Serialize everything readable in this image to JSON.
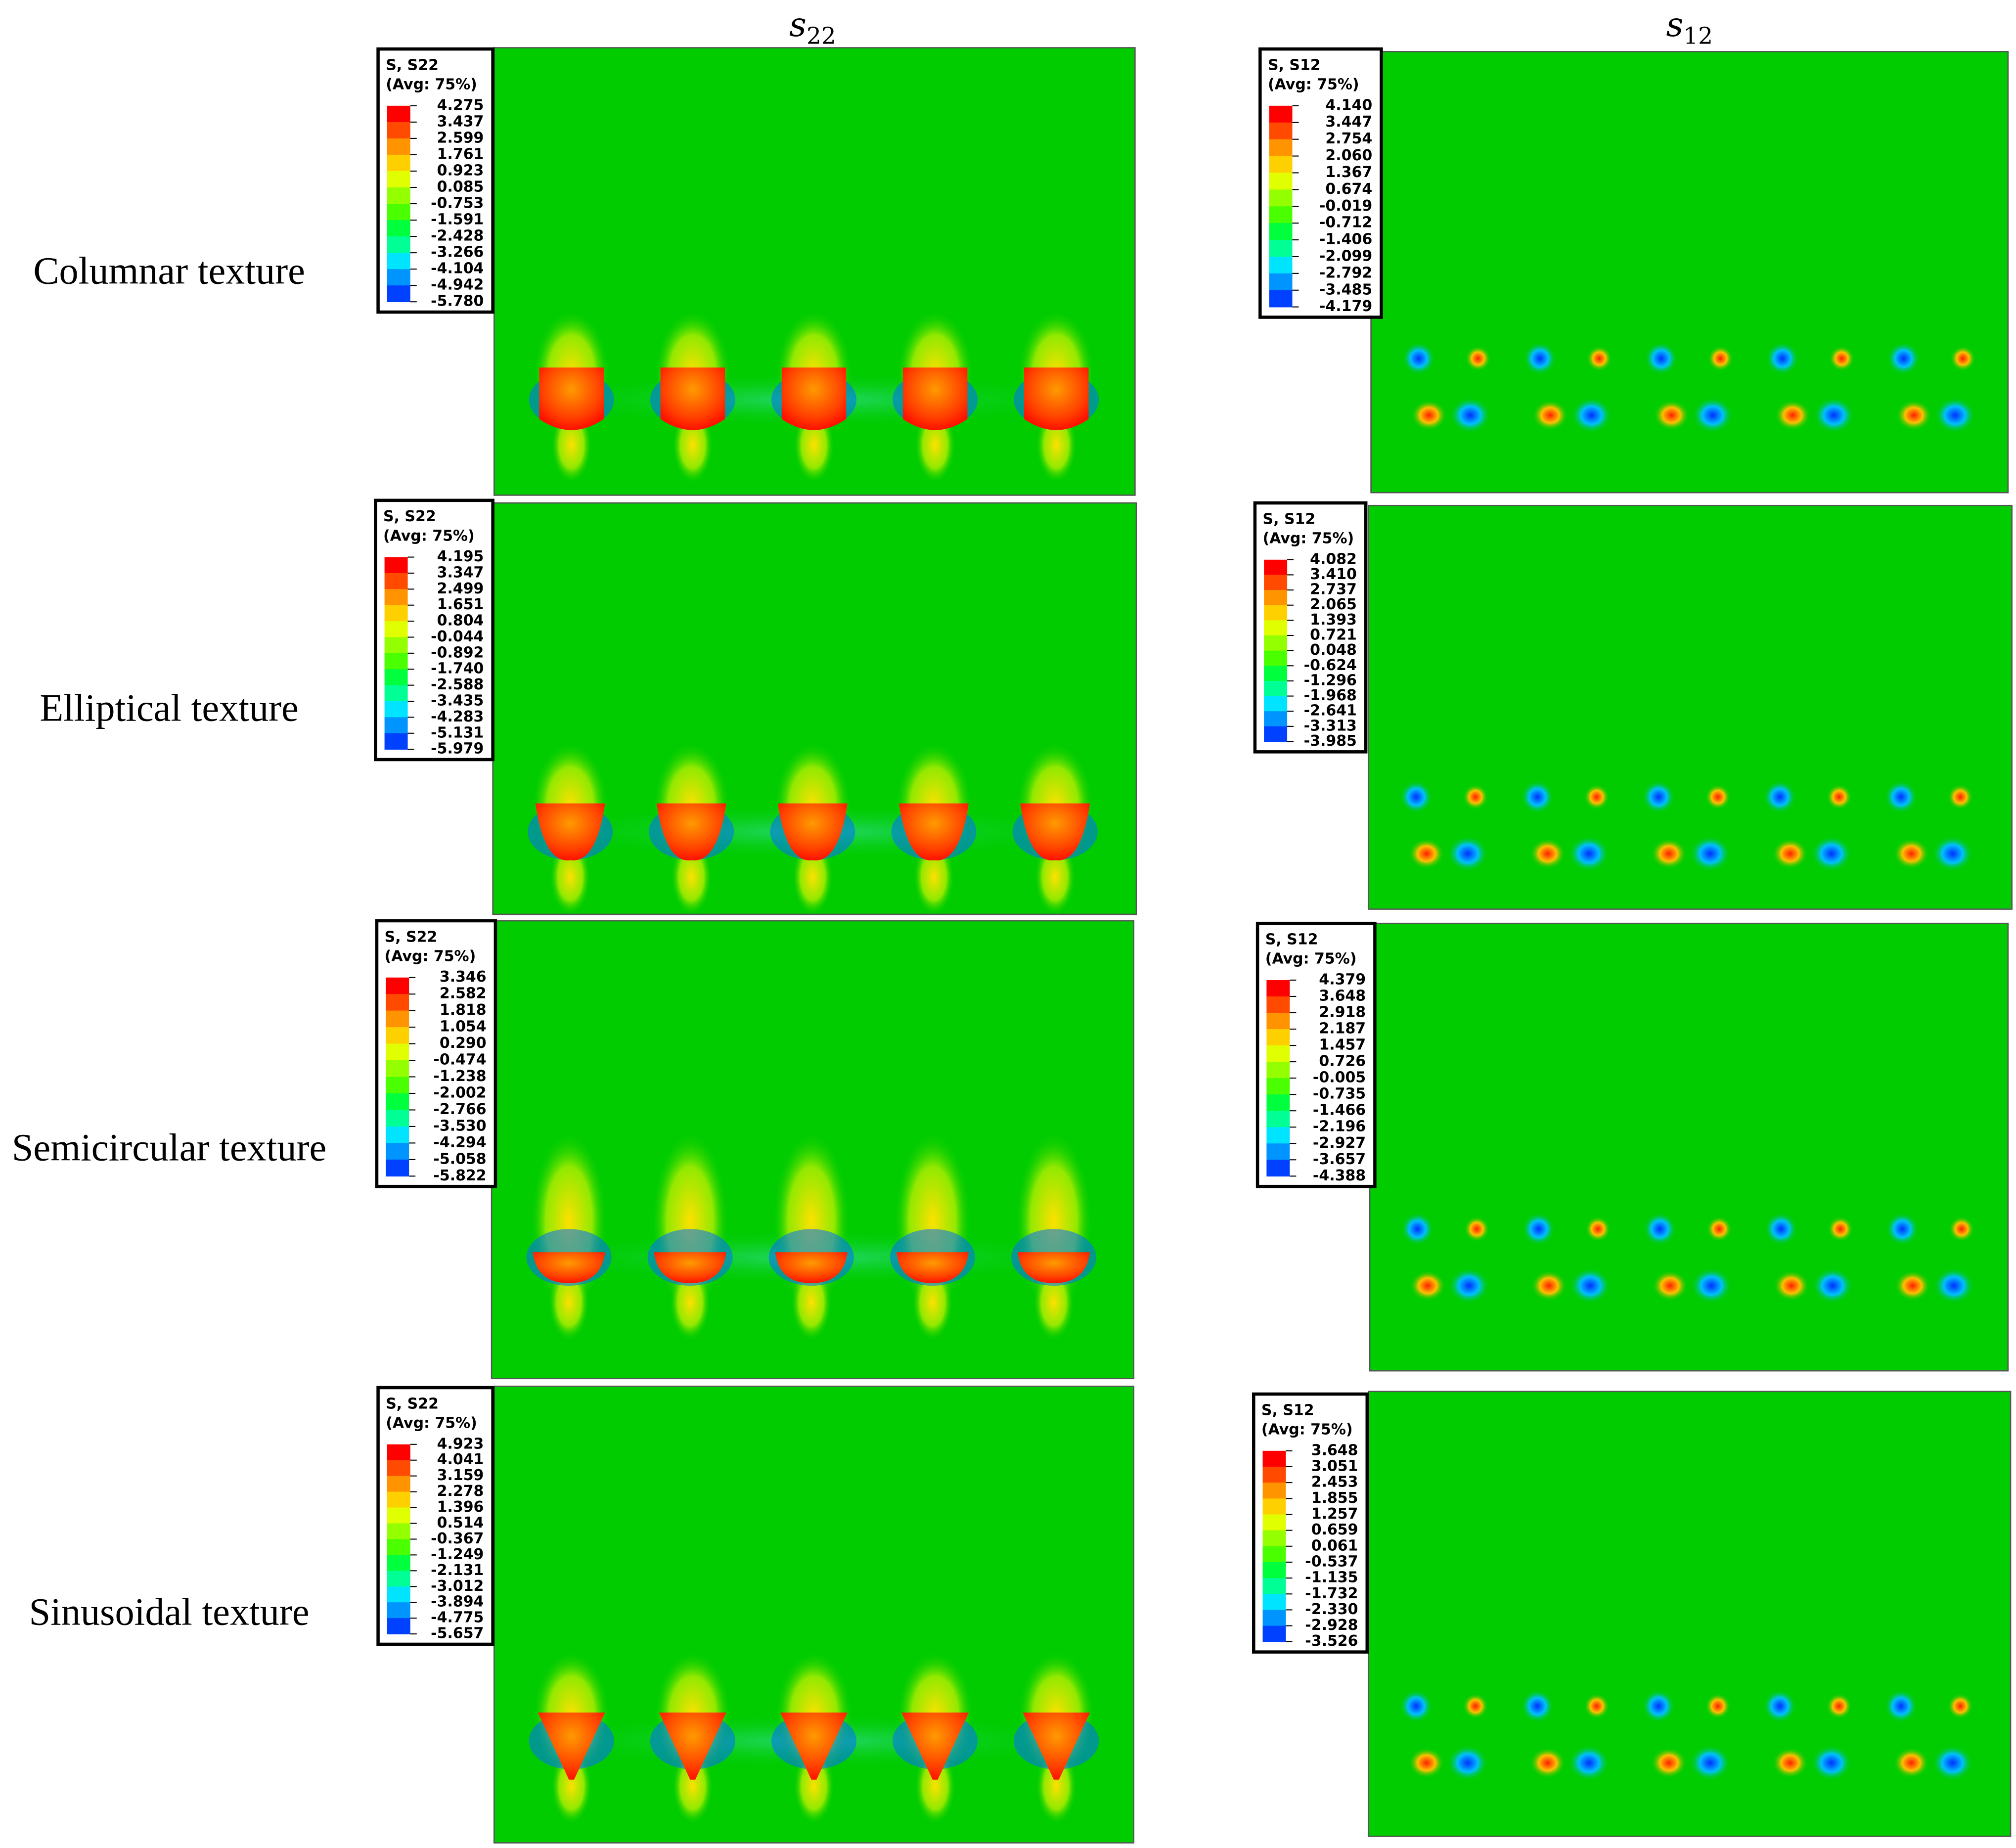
{
  "columns": [
    {
      "symbol": "s",
      "subscript": "22"
    },
    {
      "symbol": "s",
      "subscript": "12"
    }
  ],
  "rows": [
    {
      "label": "Columnar texture",
      "panels": [
        {
          "legend": {
            "title": "S, S22",
            "avg": "(Avg: 75%)",
            "values": [
              "4.275",
              "3.437",
              "2.599",
              "1.761",
              "0.923",
              "0.085",
              "-0.753",
              "-1.591",
              "-2.428",
              "-3.266",
              "-4.104",
              "-4.942",
              "-5.780"
            ]
          }
        },
        {
          "legend": {
            "title": "S, S12",
            "avg": "(Avg: 75%)",
            "values": [
              "4.140",
              "3.447",
              "2.754",
              "2.060",
              "1.367",
              "0.674",
              "-0.019",
              "-0.712",
              "-1.406",
              "-2.099",
              "-2.792",
              "-3.485",
              "-4.179"
            ]
          }
        }
      ]
    },
    {
      "label": "Elliptical texture",
      "panels": [
        {
          "legend": {
            "title": "S, S22",
            "avg": "(Avg: 75%)",
            "values": [
              "4.195",
              "3.347",
              "2.499",
              "1.651",
              "0.804",
              "-0.044",
              "-0.892",
              "-1.740",
              "-2.588",
              "-3.435",
              "-4.283",
              "-5.131",
              "-5.979"
            ]
          }
        },
        {
          "legend": {
            "title": "S, S12",
            "avg": "(Avg: 75%)",
            "values": [
              "4.082",
              "3.410",
              "2.737",
              "2.065",
              "1.393",
              "0.721",
              "0.048",
              "-0.624",
              "-1.296",
              "-1.968",
              "-2.641",
              "-3.313",
              "-3.985"
            ]
          }
        }
      ]
    },
    {
      "label": "Semicircular texture",
      "panels": [
        {
          "legend": {
            "title": "S, S22",
            "avg": "(Avg: 75%)",
            "values": [
              "3.346",
              "2.582",
              "1.818",
              "1.054",
              "0.290",
              "-0.474",
              "-1.238",
              "-2.002",
              "-2.766",
              "-3.530",
              "-4.294",
              "-5.058",
              "-5.822"
            ]
          }
        },
        {
          "legend": {
            "title": "S, S12",
            "avg": "(Avg: 75%)",
            "values": [
              "4.379",
              "3.648",
              "2.918",
              "2.187",
              "1.457",
              "0.726",
              "-0.005",
              "-0.735",
              "-1.466",
              "-2.196",
              "-2.927",
              "-3.657",
              "-4.388"
            ]
          }
        }
      ]
    },
    {
      "label": "Sinusoidal texture",
      "panels": [
        {
          "legend": {
            "title": "S, S22",
            "avg": "(Avg: 75%)",
            "values": [
              "4.923",
              "4.041",
              "3.159",
              "2.278",
              "1.396",
              "0.514",
              "-0.367",
              "-1.249",
              "-2.131",
              "-3.012",
              "-3.894",
              "-4.775",
              "-5.657"
            ]
          }
        },
        {
          "legend": {
            "title": "S, S12",
            "avg": "(Avg: 75%)",
            "values": [
              "3.648",
              "3.051",
              "2.453",
              "1.855",
              "1.257",
              "0.659",
              "0.061",
              "-0.537",
              "-1.135",
              "-1.732",
              "-2.330",
              "-2.928",
              "-3.526"
            ]
          }
        }
      ]
    }
  ]
}
